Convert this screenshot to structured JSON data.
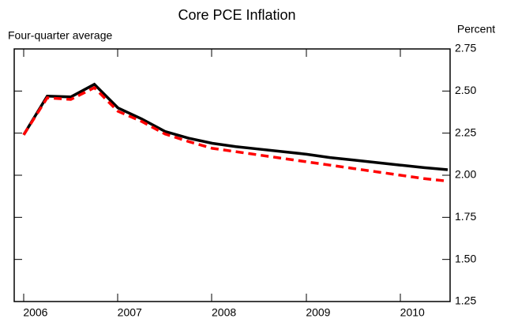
{
  "chart_data": {
    "type": "line",
    "title": "Core PCE Inflation",
    "subtitle": "Four-quarter average",
    "y_axis_label": "Percent",
    "categories": [
      null,
      "2006",
      null,
      null,
      null,
      "2007",
      null,
      null,
      null,
      "2008",
      null,
      null,
      null,
      "2009",
      null,
      null,
      null,
      "2010",
      null
    ],
    "series": [
      {
        "color": "#000000",
        "dash": false,
        "values": [
          2.24,
          2.47,
          2.465,
          2.54,
          2.4,
          2.335,
          2.26,
          2.22,
          2.19,
          2.17,
          2.155,
          2.14,
          2.125,
          2.105,
          2.09,
          2.075,
          2.06,
          2.045,
          2.033
        ]
      },
      {
        "color": "#ff0000",
        "dash": true,
        "values": [
          2.24,
          2.46,
          2.45,
          2.52,
          2.38,
          2.32,
          2.245,
          2.2,
          2.16,
          2.14,
          2.12,
          2.1,
          2.08,
          2.06,
          2.04,
          2.02,
          2.0,
          1.98,
          1.965
        ]
      }
    ],
    "ylim": [
      1.25,
      2.75
    ],
    "yticks": [
      1.25,
      {
        "value": 1.5,
        "label": "1.50"
      },
      1.75,
      {
        "value": 2,
        "label": "2.00"
      },
      2.25,
      {
        "value": 2.5,
        "label": "2.50"
      },
      2.75
    ]
  }
}
